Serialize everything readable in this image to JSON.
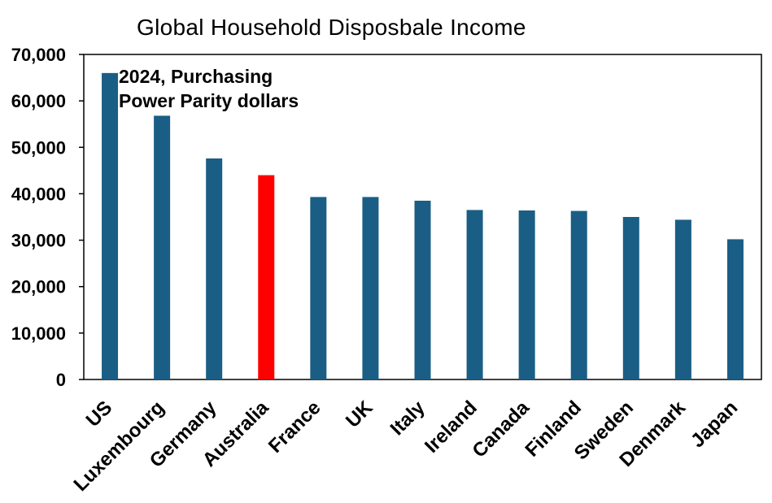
{
  "chart_data": {
    "type": "bar",
    "title": "Global Household Disposbale Income",
    "annotation_lines": [
      "2024, Purchasing",
      "Power Parity dollars"
    ],
    "categories": [
      "US",
      "Luxembourg",
      "Germany",
      "Australia",
      "France",
      "UK",
      "Italy",
      "Ireland",
      "Canada",
      "Finland",
      "Sweden",
      "Denmark",
      "Japan"
    ],
    "values": [
      66000,
      56800,
      47600,
      44000,
      39300,
      39300,
      38500,
      36500,
      36400,
      36300,
      35000,
      34400,
      30200
    ],
    "ylim": [
      0,
      70000
    ],
    "yticks": [
      0,
      10000,
      20000,
      30000,
      40000,
      50000,
      60000,
      70000
    ],
    "ytick_labels": [
      "0",
      "10,000",
      "20,000",
      "30,000",
      "40,000",
      "50,000",
      "60,000",
      "70,000"
    ],
    "xlabel": "",
    "ylabel": "",
    "grid": false,
    "colors": {
      "default": "#1a5e85",
      "highlight": "#ff0000",
      "highlight_category": "Australia"
    }
  }
}
